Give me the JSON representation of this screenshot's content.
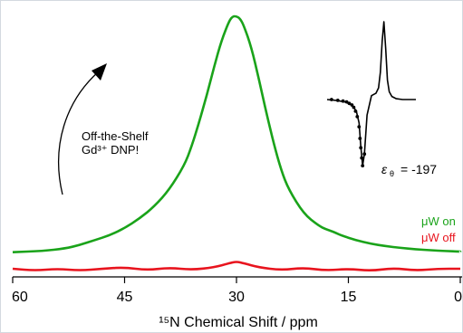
{
  "chart_data": {
    "type": "line",
    "xlabel": "¹⁵N Chemical Shift / ppm",
    "xlim": [
      60,
      0
    ],
    "x_reversed": true,
    "x_ticks": [
      60,
      45,
      30,
      15,
      0
    ],
    "x_tick_labels": [
      "60",
      "45",
      "30",
      "15",
      "0"
    ],
    "series": [
      {
        "name": "μW on",
        "color": "#1aa31a",
        "x": [
          60,
          56,
          53,
          51,
          49,
          47,
          45,
          43,
          41,
          39,
          37,
          36,
          35,
          34,
          33,
          32,
          31,
          30.5,
          30,
          29.5,
          29,
          28,
          27,
          26,
          25,
          24,
          23,
          21,
          19,
          18,
          17,
          16,
          14,
          12,
          10,
          8,
          6,
          4,
          2,
          0
        ],
        "y": [
          0.02,
          0.025,
          0.035,
          0.05,
          0.07,
          0.09,
          0.12,
          0.16,
          0.21,
          0.28,
          0.38,
          0.46,
          0.56,
          0.67,
          0.79,
          0.9,
          0.98,
          1.0,
          1.0,
          0.99,
          0.96,
          0.87,
          0.74,
          0.6,
          0.47,
          0.36,
          0.28,
          0.18,
          0.13,
          0.115,
          0.105,
          0.09,
          0.07,
          0.055,
          0.045,
          0.038,
          0.032,
          0.028,
          0.025,
          0.022
        ]
      },
      {
        "name": "μW off",
        "color": "#e8141e",
        "x": [
          60,
          57,
          54,
          51,
          48,
          45,
          42,
          39,
          36,
          33,
          31,
          30,
          29,
          27,
          24,
          21,
          18,
          15,
          12,
          9,
          6,
          3,
          0
        ],
        "y": [
          0.0,
          -0.005,
          0.0,
          -0.005,
          0.0,
          0.004,
          -0.004,
          0.003,
          -0.003,
          0.004,
          0.015,
          0.02,
          0.015,
          0.004,
          -0.004,
          0.003,
          -0.005,
          0.0,
          -0.006,
          0.002,
          -0.005,
          0.0,
          0.0
        ]
      }
    ],
    "legend": [
      "μW on",
      "μW off"
    ],
    "legend_position": "right",
    "annotation_text_lines": [
      "Off-the-Shelf",
      "Gd³⁺ DNP!"
    ],
    "enhancement_label": "ε",
    "enhancement_subscript": "θ",
    "enhancement_value": "= -197",
    "inset": {
      "type": "line",
      "fit_x": [
        0,
        0.1,
        0.2,
        0.28,
        0.33,
        0.36,
        0.38,
        0.4,
        0.42,
        0.45,
        0.5,
        0.55,
        0.58,
        0.6,
        0.62,
        0.64,
        0.66,
        0.68,
        0.7,
        0.73,
        0.78,
        0.85,
        0.92,
        1.0
      ],
      "fit_y": [
        0.0,
        -0.01,
        -0.03,
        -0.07,
        -0.15,
        -0.3,
        -0.6,
        -0.85,
        -0.7,
        -0.2,
        0.05,
        0.08,
        0.15,
        0.35,
        0.75,
        1.0,
        0.65,
        0.25,
        0.1,
        0.04,
        0.01,
        0.0,
        0.0,
        0.0
      ],
      "points_x": [
        0.05,
        0.12,
        0.18,
        0.22,
        0.25,
        0.28,
        0.3,
        0.32,
        0.34,
        0.36,
        0.37,
        0.38,
        0.39,
        0.4,
        0.42
      ],
      "points_y": [
        0.0,
        -0.01,
        -0.02,
        -0.03,
        -0.05,
        -0.07,
        -0.1,
        -0.15,
        -0.22,
        -0.35,
        -0.5,
        -0.62,
        -0.75,
        -0.85,
        -0.7
      ],
      "color": "#000000"
    }
  },
  "colors": {
    "axis": "#000000",
    "text": "#000000",
    "frame": "#d4d9e0"
  }
}
